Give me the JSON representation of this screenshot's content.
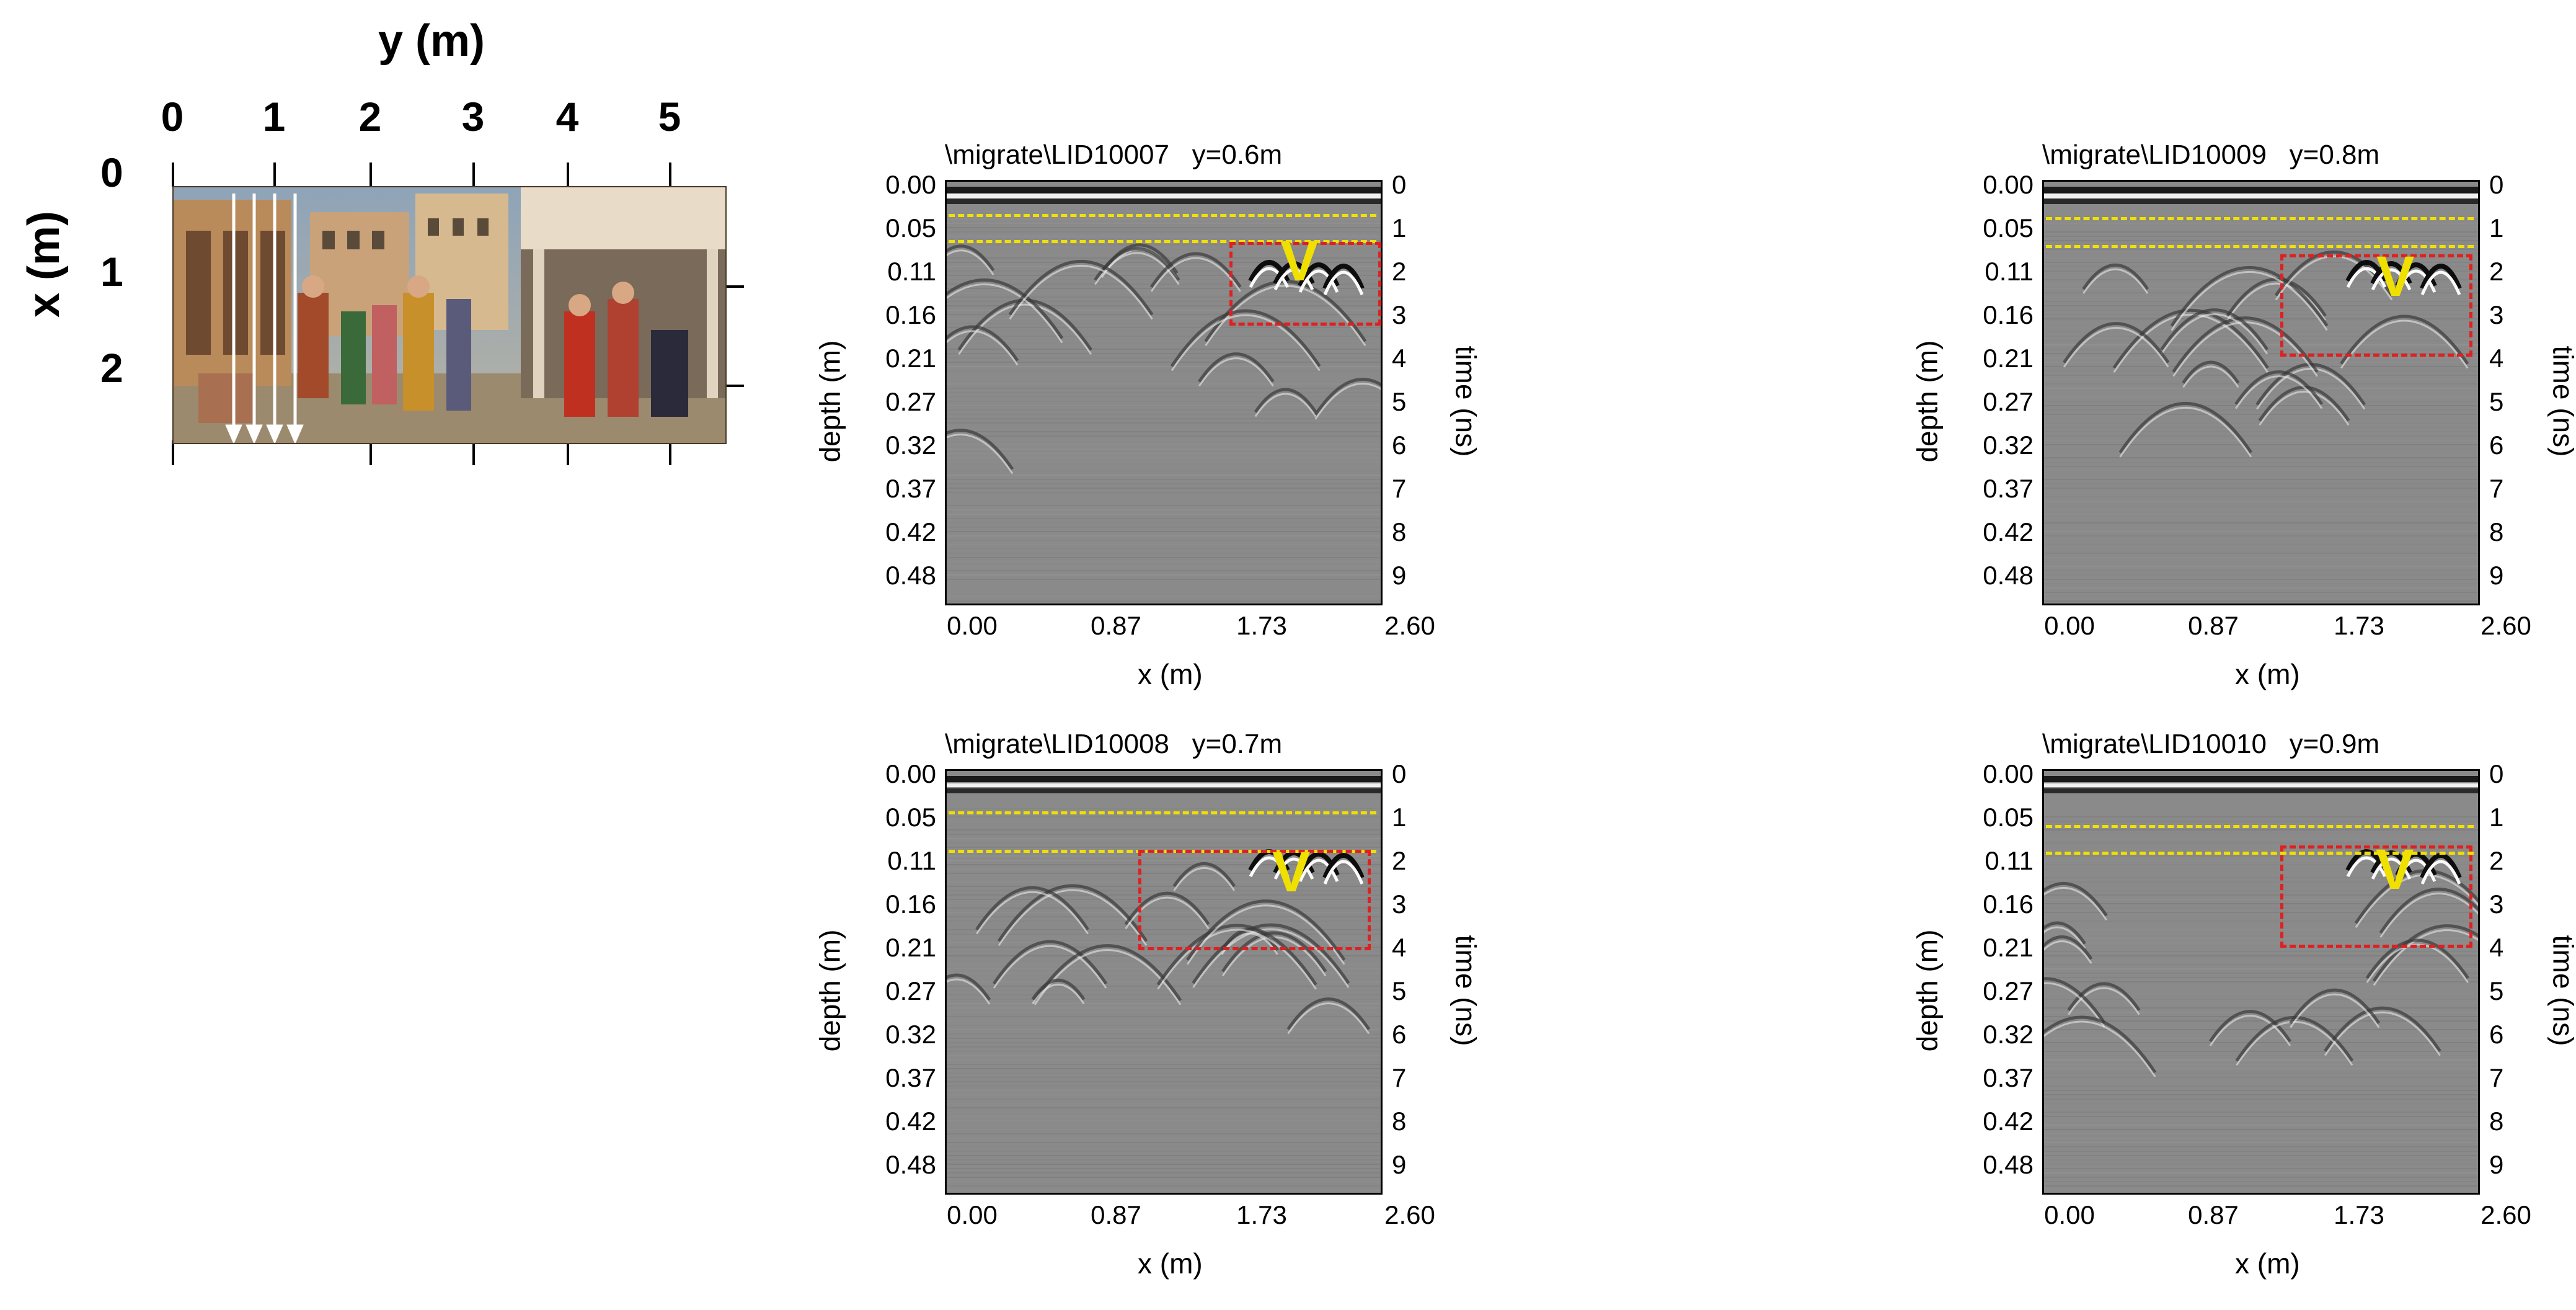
{
  "map": {
    "y_axis_label": "y (m)",
    "x_axis_label": "x (m)",
    "y_ticks": [
      "0",
      "1",
      "2",
      "3",
      "4",
      "5"
    ],
    "x_ticks": [
      "0",
      "1",
      "2"
    ]
  },
  "panels": [
    {
      "title": "\\migrate\\LID10007   y=0.6m",
      "roi_label": "V",
      "depth_label": "depth (m)",
      "time_label": "time (ns)",
      "x_label": "x (m)",
      "depth_ticks": [
        "0.00",
        "0.05",
        "0.11",
        "0.16",
        "0.21",
        "0.27",
        "0.32",
        "0.37",
        "0.42",
        "0.48"
      ],
      "time_ticks": [
        "0",
        "1",
        "2",
        "3",
        "4",
        "5",
        "6",
        "7",
        "8",
        "9"
      ],
      "x_ticks": [
        "0.00",
        "0.87",
        "1.73",
        "2.60"
      ]
    },
    {
      "title": "\\migrate\\LID10009   y=0.8m",
      "roi_label": "V",
      "depth_label": "depth (m)",
      "time_label": "time (ns)",
      "x_label": "x (m)",
      "depth_ticks": [
        "0.00",
        "0.05",
        "0.11",
        "0.16",
        "0.21",
        "0.27",
        "0.32",
        "0.37",
        "0.42",
        "0.48"
      ],
      "time_ticks": [
        "0",
        "1",
        "2",
        "3",
        "4",
        "5",
        "6",
        "7",
        "8",
        "9"
      ],
      "x_ticks": [
        "0.00",
        "0.87",
        "1.73",
        "2.60"
      ]
    },
    {
      "title": "\\migrate\\LID10008   y=0.7m",
      "roi_label": "V",
      "depth_label": "depth (m)",
      "time_label": "time (ns)",
      "x_label": "x (m)",
      "depth_ticks": [
        "0.00",
        "0.05",
        "0.11",
        "0.16",
        "0.21",
        "0.27",
        "0.32",
        "0.37",
        "0.42",
        "0.48"
      ],
      "time_ticks": [
        "0",
        "1",
        "2",
        "3",
        "4",
        "5",
        "6",
        "7",
        "8",
        "9"
      ],
      "x_ticks": [
        "0.00",
        "0.87",
        "1.73",
        "2.60"
      ]
    },
    {
      "title": "\\migrate\\LID10010   y=0.9m",
      "roi_label": "V",
      "depth_label": "depth (m)",
      "time_label": "time (ns)",
      "x_label": "x (m)",
      "depth_ticks": [
        "0.00",
        "0.05",
        "0.11",
        "0.16",
        "0.21",
        "0.27",
        "0.32",
        "0.37",
        "0.42",
        "0.48"
      ],
      "time_ticks": [
        "0",
        "1",
        "2",
        "3",
        "4",
        "5",
        "6",
        "7",
        "8",
        "9"
      ],
      "x_ticks": [
        "0.00",
        "0.87",
        "1.73",
        "2.60"
      ]
    }
  ],
  "colors": {
    "marker_line": "#f0e000",
    "roi_box": "#e02020",
    "radargram_background": "#8a8a8a"
  }
}
